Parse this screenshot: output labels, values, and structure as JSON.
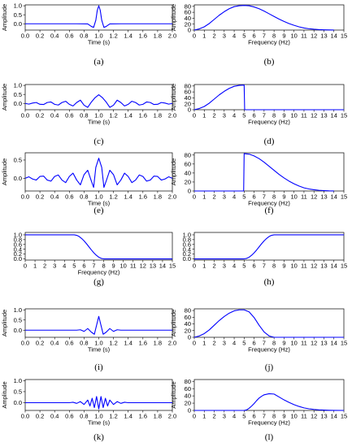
{
  "line_color": "#0000ff",
  "chart_data": [
    {
      "id": "a",
      "type": "line",
      "caption": "(a)",
      "xlabel": "Time (s)",
      "ylabel": "Amplitude",
      "xlim": [
        0,
        2
      ],
      "ylim": [
        -0.35,
        1.05
      ],
      "xticks": [
        "0.0",
        "0.2",
        "0.4",
        "0.6",
        "0.8",
        "1.0",
        "1.2",
        "1.4",
        "1.6",
        "1.8",
        "2.0"
      ],
      "xtick_values": [
        0,
        0.2,
        0.4,
        0.6,
        0.8,
        1.0,
        1.2,
        1.4,
        1.6,
        1.8,
        2.0
      ],
      "yticks": [
        "0.0",
        "0.5",
        "1.0"
      ],
      "ytick_values": [
        0,
        0.5,
        1.0
      ],
      "x": [
        0,
        0.7,
        0.85,
        0.9,
        0.93,
        0.96,
        0.98,
        1.0,
        1.02,
        1.04,
        1.07,
        1.1,
        1.15,
        1.3,
        2.0
      ],
      "y": [
        0,
        0,
        -0.01,
        -0.15,
        -0.2,
        0.2,
        0.75,
        1.0,
        0.75,
        0.2,
        -0.2,
        -0.15,
        -0.01,
        0,
        0
      ]
    },
    {
      "id": "b",
      "type": "line",
      "caption": "(b)",
      "xlabel": "Frequency (Hz)",
      "ylabel": "Amplitude",
      "xlim": [
        0,
        15
      ],
      "ylim": [
        0,
        85
      ],
      "xticks": [
        "0",
        "1",
        "2",
        "3",
        "4",
        "5",
        "6",
        "7",
        "8",
        "9",
        "10",
        "11",
        "12",
        "13",
        "14",
        "15"
      ],
      "xtick_values": [
        0,
        1,
        2,
        3,
        4,
        5,
        6,
        7,
        8,
        9,
        10,
        11,
        12,
        13,
        14,
        15
      ],
      "yticks": [
        "0",
        "20",
        "40",
        "60",
        "80"
      ],
      "ytick_values": [
        0,
        20,
        40,
        60,
        80
      ],
      "x": [
        0,
        0.5,
        1,
        1.5,
        2,
        2.5,
        3,
        3.5,
        4,
        4.5,
        5,
        5.5,
        6,
        6.5,
        7,
        7.5,
        8,
        8.5,
        9,
        9.5,
        10,
        10.5,
        11,
        11.5,
        12,
        12.5,
        13,
        13.5,
        14
      ],
      "y": [
        0,
        4,
        11,
        22,
        36,
        50,
        62,
        72,
        79,
        82,
        83,
        82,
        78,
        72,
        64,
        55,
        46,
        37,
        29,
        22,
        16,
        11,
        7,
        4.5,
        2.8,
        1.6,
        0.9,
        0.4,
        0.2
      ]
    },
    {
      "id": "c",
      "type": "line",
      "caption": "(c)",
      "xlabel": "Time (s)",
      "ylabel": "Amplitude",
      "xlim": [
        0,
        2
      ],
      "ylim": [
        -0.35,
        1.05
      ],
      "xticks": [
        "0.0",
        "0.2",
        "0.4",
        "0.6",
        "0.8",
        "1.0",
        "1.2",
        "1.4",
        "1.6",
        "1.8",
        "2.0"
      ],
      "xtick_values": [
        0,
        0.2,
        0.4,
        0.6,
        0.8,
        1.0,
        1.2,
        1.4,
        1.6,
        1.8,
        2.0
      ],
      "yticks": [
        "0.0",
        "0.5",
        "1.0"
      ],
      "ytick_values": [
        0,
        0.5,
        1.0
      ],
      "x": [
        0,
        0.05,
        0.1,
        0.15,
        0.2,
        0.25,
        0.3,
        0.35,
        0.4,
        0.45,
        0.5,
        0.55,
        0.6,
        0.65,
        0.7,
        0.75,
        0.8,
        0.85,
        0.9,
        0.95,
        1.0,
        1.05,
        1.1,
        1.15,
        1.2,
        1.25,
        1.3,
        1.35,
        1.4,
        1.45,
        1.5,
        1.55,
        1.6,
        1.65,
        1.7,
        1.75,
        1.8,
        1.85,
        1.9,
        1.95,
        2.0
      ],
      "y": [
        0,
        -0.04,
        0.02,
        0.05,
        -0.05,
        -0.06,
        0.05,
        0.08,
        -0.05,
        -0.09,
        0.05,
        0.12,
        -0.05,
        -0.14,
        0.05,
        0.18,
        -0.1,
        -0.22,
        0.08,
        0.32,
        0.48,
        0.32,
        0.08,
        -0.22,
        -0.1,
        0.18,
        0.05,
        -0.14,
        -0.05,
        0.12,
        0.05,
        -0.09,
        -0.05,
        0.08,
        0.05,
        -0.06,
        -0.05,
        0.05,
        0.02,
        -0.04,
        0
      ]
    },
    {
      "id": "d",
      "type": "line",
      "caption": "(d)",
      "xlabel": "Frequency (Hz)",
      "ylabel": "Amplitude",
      "xlim": [
        0,
        15
      ],
      "ylim": [
        0,
        85
      ],
      "xticks": [
        "0",
        "1",
        "2",
        "3",
        "4",
        "5",
        "6",
        "7",
        "8",
        "9",
        "10",
        "11",
        "12",
        "13",
        "14",
        "15"
      ],
      "xtick_values": [
        0,
        1,
        2,
        3,
        4,
        5,
        6,
        7,
        8,
        9,
        10,
        11,
        12,
        13,
        14,
        15
      ],
      "yticks": [
        "0",
        "20",
        "40",
        "60",
        "80"
      ],
      "ytick_values": [
        0,
        20,
        40,
        60,
        80
      ],
      "x": [
        0,
        0.5,
        1,
        1.5,
        2,
        2.5,
        3,
        3.5,
        4,
        4.5,
        5,
        5.05,
        15
      ],
      "y": [
        0,
        4,
        11,
        22,
        36,
        50,
        62,
        72,
        79,
        82,
        83,
        0,
        0
      ]
    },
    {
      "id": "e",
      "type": "line",
      "caption": "(e)",
      "xlabel": "Time (s)",
      "ylabel": "Amplitude",
      "xlim": [
        0,
        2
      ],
      "ylim": [
        -0.35,
        0.7
      ],
      "xticks": [
        "0.0",
        "0.2",
        "0.4",
        "0.6",
        "0.8",
        "1.0",
        "1.2",
        "1.4",
        "1.6",
        "1.8",
        "2.0"
      ],
      "xtick_values": [
        0,
        0.2,
        0.4,
        0.6,
        0.8,
        1.0,
        1.2,
        1.4,
        1.6,
        1.8,
        2.0
      ],
      "yticks": [
        "0.0",
        "0.5"
      ],
      "ytick_values": [
        0,
        0.5
      ],
      "x": [
        0,
        0.05,
        0.1,
        0.15,
        0.2,
        0.25,
        0.3,
        0.35,
        0.4,
        0.45,
        0.5,
        0.55,
        0.6,
        0.65,
        0.7,
        0.75,
        0.8,
        0.85,
        0.9,
        0.93,
        0.96,
        1.0,
        1.04,
        1.07,
        1.1,
        1.15,
        1.2,
        1.25,
        1.3,
        1.35,
        1.4,
        1.45,
        1.5,
        1.55,
        1.6,
        1.65,
        1.7,
        1.75,
        1.8,
        1.85,
        1.9,
        1.95,
        2.0
      ],
      "y": [
        0,
        0.04,
        -0.02,
        -0.05,
        0.05,
        0.06,
        -0.05,
        -0.08,
        0.05,
        0.09,
        -0.05,
        -0.12,
        0.05,
        0.14,
        -0.05,
        -0.18,
        0.1,
        0.22,
        -0.08,
        -0.25,
        0.3,
        0.55,
        0.3,
        -0.25,
        -0.08,
        0.22,
        0.1,
        -0.18,
        -0.05,
        0.14,
        0.05,
        -0.12,
        -0.05,
        0.09,
        0.05,
        -0.08,
        -0.05,
        0.06,
        0.05,
        -0.05,
        -0.02,
        0.04,
        0
      ]
    },
    {
      "id": "f",
      "type": "line",
      "caption": "(f)",
      "xlabel": "Frequency (Hz)",
      "ylabel": "Amplitude",
      "xlim": [
        0,
        15
      ],
      "ylim": [
        0,
        85
      ],
      "xticks": [
        "0",
        "1",
        "2",
        "3",
        "4",
        "5",
        "6",
        "7",
        "8",
        "9",
        "10",
        "11",
        "12",
        "13",
        "14",
        "15"
      ],
      "xtick_values": [
        0,
        1,
        2,
        3,
        4,
        5,
        6,
        7,
        8,
        9,
        10,
        11,
        12,
        13,
        14,
        15
      ],
      "yticks": [
        "0",
        "20",
        "40",
        "60",
        "80"
      ],
      "ytick_values": [
        0,
        20,
        40,
        60,
        80
      ],
      "x": [
        0,
        4.95,
        5,
        5.5,
        6,
        6.5,
        7,
        7.5,
        8,
        8.5,
        9,
        9.5,
        10,
        10.5,
        11,
        11.5,
        12,
        12.5,
        13,
        13.5,
        14
      ],
      "y": [
        0,
        0,
        83,
        82,
        78,
        72,
        64,
        55,
        46,
        37,
        29,
        22,
        16,
        11,
        7,
        4.5,
        2.8,
        1.6,
        0.9,
        0.4,
        0.2
      ]
    },
    {
      "id": "g",
      "type": "line",
      "caption": "(g)",
      "xlabel": "Frequency (Hz)",
      "ylabel": "",
      "xlim": [
        0,
        15
      ],
      "ylim": [
        -0.05,
        1.1
      ],
      "xticks": [
        "0",
        "1",
        "2",
        "3",
        "4",
        "5",
        "6",
        "7",
        "8",
        "9",
        "10",
        "11",
        "12",
        "13",
        "14",
        "15"
      ],
      "xtick_values": [
        0,
        1,
        2,
        3,
        4,
        5,
        6,
        7,
        8,
        9,
        10,
        11,
        12,
        13,
        14,
        15
      ],
      "yticks": [
        "0.0",
        "0.2",
        "0.4",
        "0.6",
        "0.8",
        "1.0"
      ],
      "ytick_values": [
        0,
        0.2,
        0.4,
        0.6,
        0.8,
        1.0
      ],
      "x": [
        0,
        5,
        5.25,
        5.5,
        5.75,
        6,
        6.25,
        6.5,
        6.75,
        7,
        7.25,
        7.5,
        7.75,
        8,
        15
      ],
      "y": [
        1,
        1,
        0.98,
        0.93,
        0.85,
        0.75,
        0.63,
        0.5,
        0.37,
        0.25,
        0.15,
        0.07,
        0.02,
        0,
        0
      ]
    },
    {
      "id": "h",
      "type": "line",
      "caption": "(h)",
      "xlabel": "",
      "ylabel": "",
      "xlim": [
        0,
        15
      ],
      "ylim": [
        -0.05,
        1.1
      ],
      "xticks": [
        "0",
        "1",
        "2",
        "3",
        "4",
        "5",
        "6",
        "7",
        "8",
        "9",
        "10",
        "11",
        "12",
        "13",
        "14",
        "15"
      ],
      "xtick_values": [
        0,
        1,
        2,
        3,
        4,
        5,
        6,
        7,
        8,
        9,
        10,
        11,
        12,
        13,
        14,
        15
      ],
      "yticks": [
        "0.0",
        "0.2",
        "0.4",
        "0.6",
        "0.8",
        "1.0"
      ],
      "ytick_values": [
        0,
        0.2,
        0.4,
        0.6,
        0.8,
        1.0
      ],
      "x": [
        0,
        5,
        5.25,
        5.5,
        5.75,
        6,
        6.25,
        6.5,
        6.75,
        7,
        7.25,
        7.5,
        7.75,
        8,
        15
      ],
      "y": [
        0,
        0,
        0.02,
        0.07,
        0.15,
        0.25,
        0.37,
        0.5,
        0.63,
        0.75,
        0.85,
        0.93,
        0.98,
        1,
        1
      ]
    },
    {
      "id": "i",
      "type": "line",
      "caption": "(i)",
      "xlabel": "Time (s)",
      "ylabel": "Amplitude",
      "xlim": [
        0,
        2
      ],
      "ylim": [
        -0.35,
        1.05
      ],
      "xticks": [
        "0.0",
        "0.2",
        "0.4",
        "0.6",
        "0.8",
        "1.0",
        "1.2",
        "1.4",
        "1.6",
        "1.8",
        "2.0"
      ],
      "xtick_values": [
        0,
        0.2,
        0.4,
        0.6,
        0.8,
        1.0,
        1.2,
        1.4,
        1.6,
        1.8,
        2.0
      ],
      "yticks": [
        "0.0",
        "0.5",
        "1.0"
      ],
      "ytick_values": [
        0,
        0.5,
        1.0
      ],
      "x": [
        0,
        0.7,
        0.75,
        0.8,
        0.85,
        0.9,
        0.94,
        1.0,
        1.06,
        1.1,
        1.15,
        1.2,
        1.25,
        1.3,
        2.0
      ],
      "y": [
        0,
        0,
        0.02,
        -0.06,
        0.08,
        -0.1,
        -0.2,
        0.68,
        -0.2,
        -0.1,
        0.08,
        -0.06,
        0.02,
        0,
        0
      ]
    },
    {
      "id": "j",
      "type": "line",
      "caption": "(j)",
      "xlabel": "Frequency (Hz)",
      "ylabel": "Amplitude",
      "xlim": [
        0,
        15
      ],
      "ylim": [
        0,
        85
      ],
      "xticks": [
        "0",
        "1",
        "2",
        "3",
        "4",
        "5",
        "6",
        "7",
        "8",
        "9",
        "10",
        "11",
        "12",
        "13",
        "14",
        "15"
      ],
      "xtick_values": [
        0,
        1,
        2,
        3,
        4,
        5,
        6,
        7,
        8,
        9,
        10,
        11,
        12,
        13,
        14,
        15
      ],
      "yticks": [
        "0",
        "20",
        "40",
        "60",
        "80"
      ],
      "ytick_values": [
        0,
        20,
        40,
        60,
        80
      ],
      "x": [
        0,
        0.5,
        1,
        1.5,
        2,
        2.5,
        3,
        3.5,
        4,
        4.5,
        5,
        5.5,
        6,
        6.5,
        7,
        7.5,
        8,
        15
      ],
      "y": [
        0,
        4,
        11,
        22,
        36,
        50,
        62,
        72,
        79,
        82,
        82,
        76,
        59,
        36,
        16,
        4,
        0,
        0
      ]
    },
    {
      "id": "k",
      "type": "line",
      "caption": "(k)",
      "xlabel": "Time (s)",
      "ylabel": "Amplitude",
      "xlim": [
        0,
        2
      ],
      "ylim": [
        -0.35,
        1.05
      ],
      "xticks": [
        "0.0",
        "0.2",
        "0.4",
        "0.6",
        "0.8",
        "1.0",
        "1.2",
        "1.4",
        "1.6",
        "1.8",
        "2.0"
      ],
      "xtick_values": [
        0,
        0.2,
        0.4,
        0.6,
        0.8,
        1.0,
        1.2,
        1.4,
        1.6,
        1.8,
        2.0
      ],
      "yticks": [
        "0.0",
        "0.5",
        "1.0"
      ],
      "ytick_values": [
        0,
        0.5,
        1.0
      ],
      "x": [
        0,
        0.6,
        0.65,
        0.7,
        0.75,
        0.8,
        0.85,
        0.88,
        0.91,
        0.94,
        0.97,
        1.0,
        1.03,
        1.06,
        1.09,
        1.12,
        1.15,
        1.2,
        1.25,
        1.3,
        1.35,
        1.4,
        2.0
      ],
      "y": [
        0,
        0,
        0.02,
        -0.03,
        0.05,
        -0.08,
        0.12,
        -0.15,
        0.2,
        -0.22,
        0.28,
        -0.28,
        0.28,
        -0.22,
        0.2,
        -0.15,
        0.12,
        -0.08,
        0.05,
        -0.03,
        0.02,
        0,
        0
      ]
    },
    {
      "id": "l",
      "type": "line",
      "caption": "(l)",
      "xlabel": "Frequency (Hz)",
      "ylabel": "Amplitude",
      "xlim": [
        0,
        15
      ],
      "ylim": [
        0,
        85
      ],
      "xticks": [
        "0",
        "1",
        "2",
        "3",
        "4",
        "5",
        "6",
        "7",
        "8",
        "9",
        "10",
        "11",
        "12",
        "13",
        "14",
        "15"
      ],
      "xtick_values": [
        0,
        1,
        2,
        3,
        4,
        5,
        6,
        7,
        8,
        9,
        10,
        11,
        12,
        13,
        14,
        15
      ],
      "yticks": [
        "0",
        "20",
        "40",
        "60",
        "80"
      ],
      "ytick_values": [
        0,
        20,
        40,
        60,
        80
      ],
      "x": [
        0,
        5,
        5.25,
        5.5,
        5.75,
        6,
        6.25,
        6.5,
        6.75,
        7,
        7.5,
        8,
        8.5,
        9,
        9.5,
        10,
        10.5,
        11,
        11.5,
        12,
        12.5,
        13,
        13.5,
        14,
        15
      ],
      "y": [
        0,
        0,
        1.6,
        6,
        12,
        19,
        27,
        34,
        39,
        43,
        46,
        45,
        37,
        29,
        22,
        16,
        11,
        7,
        4.5,
        2.8,
        1.6,
        0.9,
        0.4,
        0.2,
        0
      ]
    }
  ]
}
